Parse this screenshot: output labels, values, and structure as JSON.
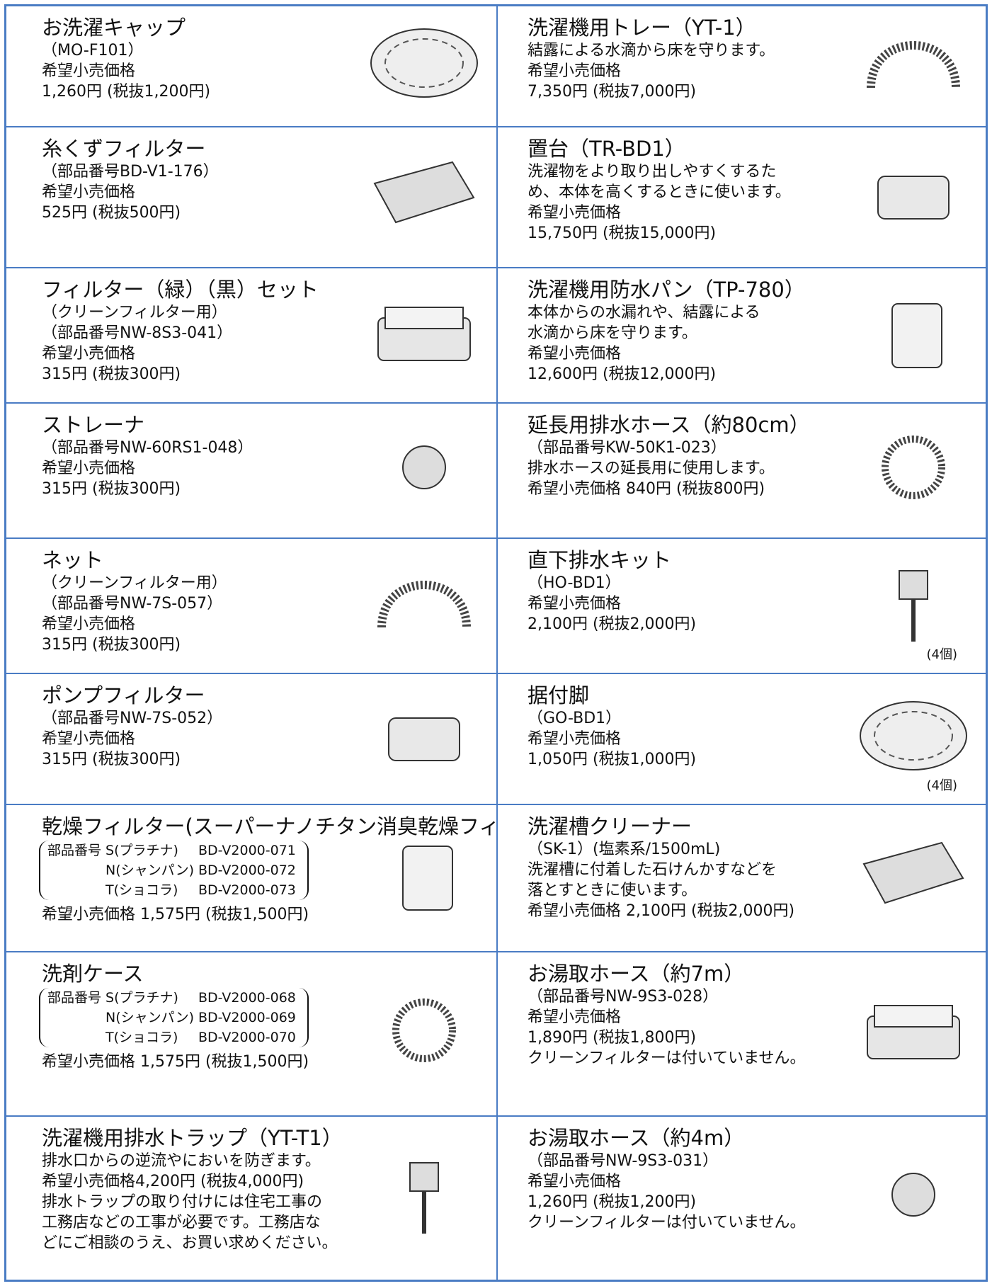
{
  "rows": [
    {
      "left": {
        "title": "お洗濯キャップ",
        "lines": [
          "（MO-F101）",
          "希望小売価格",
          "1,260円 (税抜1,200円)"
        ]
      },
      "right": {
        "title": "洗濯機用トレー（YT-1）",
        "lines": [
          "結露による水滴から床を守ります。",
          "希望小売価格",
          "7,350円 (税抜7,000円)"
        ]
      }
    },
    {
      "left": {
        "title": "糸くずフィルター",
        "lines": [
          "（部品番号BD-V1-176）",
          "希望小売価格",
          "525円 (税抜500円)"
        ]
      },
      "right": {
        "title": "置台（TR-BD1）",
        "lines": [
          "洗濯物をより取り出しやすくするた",
          "め、本体を高くするときに使います。",
          "希望小売価格",
          "15,750円 (税抜15,000円)"
        ]
      }
    },
    {
      "left": {
        "title": "フィルター（緑）（黒）セット",
        "lines": [
          "（クリーンフィルター用）",
          "（部品番号NW-8S3-041）",
          "希望小売価格",
          "315円 (税抜300円)"
        ]
      },
      "right": {
        "title": "洗濯機用防水パン（TP-780）",
        "lines": [
          "本体からの水漏れや、結露による",
          "水滴から床を守ります。",
          "希望小売価格",
          "12,600円 (税抜12,000円)"
        ]
      }
    },
    {
      "left": {
        "title": "ストレーナ",
        "lines": [
          "（部品番号NW-60RS1-048）",
          "希望小売価格",
          "315円 (税抜300円)"
        ]
      },
      "right": {
        "title": "延長用排水ホース（約80cm）",
        "lines": [
          "（部品番号KW-50K1-023）",
          "排水ホースの延長用に使用します。",
          "希望小売価格 840円 (税抜800円)"
        ]
      }
    },
    {
      "left": {
        "title": "ネット",
        "lines": [
          "（クリーンフィルター用）",
          "（部品番号NW-7S-057）",
          "希望小売価格",
          "315円 (税抜300円)"
        ]
      },
      "right": {
        "title": "直下排水キット",
        "lines": [
          "（HO-BD1）",
          "希望小売価格",
          "2,100円 (税抜2,000円)"
        ],
        "image_label": "(4個)"
      }
    },
    {
      "left": {
        "title": "ポンプフィルター",
        "lines": [
          "（部品番号NW-7S-052）",
          "希望小売価格",
          "315円 (税抜300円)"
        ]
      },
      "right": {
        "title": "据付脚",
        "lines": [
          "（GO-BD1）",
          "希望小売価格",
          "1,050円 (税抜1,000円)"
        ],
        "image_label": "(4個)"
      }
    },
    {
      "left": {
        "title": "乾燥フィルター(スーパーナノチタン消臭乾燥フィルター)",
        "parts": [
          [
            "部品番号",
            "S(プラチナ)",
            "BD-V2000-071"
          ],
          [
            "",
            "N(シャンパン)",
            "BD-V2000-072"
          ],
          [
            "",
            "T(ショコラ)",
            "BD-V2000-073"
          ]
        ],
        "lines": [
          "希望小売価格 1,575円 (税抜1,500円)"
        ]
      },
      "right": {
        "title": "洗濯槽クリーナー",
        "lines": [
          "（SK-1）(塩素系/1500mL)",
          "洗濯槽に付着した石けんかすなどを",
          "落とすときに使います。",
          "希望小売価格 2,100円 (税抜2,000円)"
        ]
      }
    },
    {
      "left": {
        "title": "洗剤ケース",
        "parts": [
          [
            "部品番号",
            "S(プラチナ)",
            "BD-V2000-068"
          ],
          [
            "",
            "N(シャンパン)",
            "BD-V2000-069"
          ],
          [
            "",
            "T(ショコラ)",
            "BD-V2000-070"
          ]
        ],
        "lines": [
          "希望小売価格 1,575円 (税抜1,500円)"
        ]
      },
      "right": {
        "title": "お湯取ホース（約7m）",
        "lines": [
          "（部品番号NW-9S3-028）",
          "希望小売価格",
          "1,890円 (税抜1,800円)",
          "クリーンフィルターは付いていません。"
        ]
      }
    },
    {
      "left": {
        "title": "洗濯機用排水トラップ（YT-T1）",
        "lines": [
          "排水口からの逆流やにおいを防ぎます。",
          "希望小売価格4,200円 (税抜4,000円)",
          "排水トラップの取り付けには住宅工事の",
          "工務店などの工事が必要です。工務店な",
          "どにご相談のうえ、お買い求めください。"
        ]
      },
      "right": {
        "title": "お湯取ホース（約4m）",
        "lines": [
          "（部品番号NW-9S3-031）",
          "希望小売価格",
          "1,260円 (税抜1,200円)",
          "クリーンフィルターは付いていません。"
        ]
      }
    }
  ]
}
